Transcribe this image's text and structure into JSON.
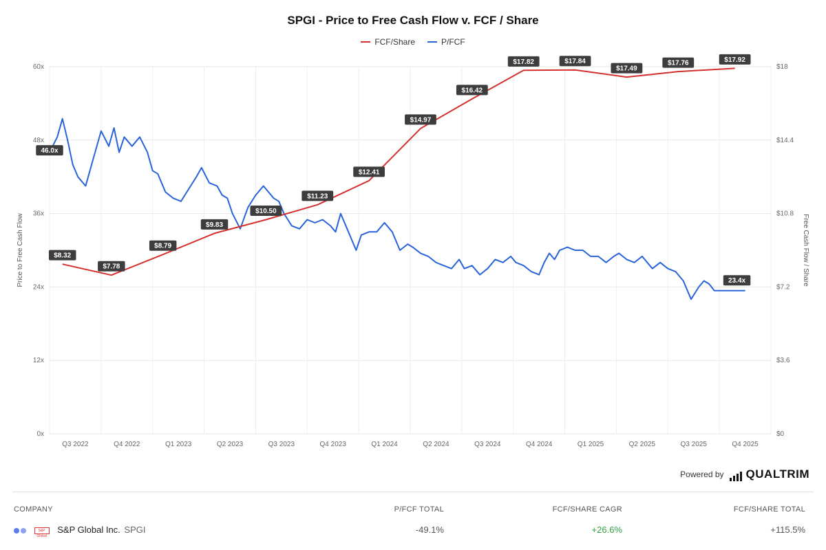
{
  "title": "SPGI - Price to Free Cash Flow v. FCF / Share",
  "legend": [
    {
      "name": "FCF/Share",
      "color": "#d32f2f"
    },
    {
      "name": "P/FCF",
      "color": "#2962d9"
    }
  ],
  "chart_data": {
    "type": "line",
    "title": "SPGI - Price to Free Cash Flow v. FCF / Share",
    "x_ticks": [
      "Q3 2022",
      "Q4 2022",
      "Q1 2023",
      "Q2 2023",
      "Q3 2023",
      "Q4 2023",
      "Q1 2024",
      "Q2 2024",
      "Q3 2024",
      "Q4 2024",
      "Q1 2025",
      "Q2 2025",
      "Q3 2025",
      "Q4 2025"
    ],
    "y_left": {
      "label": "Price to Free Cash Flow",
      "min": 0,
      "max": 60,
      "ticks": [
        "0x",
        "12x",
        "24x",
        "36x",
        "48x",
        "60x"
      ]
    },
    "y_right": {
      "label": "Free Cash Flow / Share",
      "min": 0,
      "max": 18,
      "ticks": [
        "$0",
        "$3.6",
        "$7.2",
        "$10.8",
        "$14.4",
        "$18"
      ]
    },
    "series": [
      {
        "name": "FCF/Share",
        "axis": "right",
        "color": "#d32f2f",
        "x": [
          0.25,
          1.2,
          2.2,
          3.2,
          4.2,
          5.2,
          6.2,
          7.2,
          8.2,
          9.2,
          10.2,
          11.2,
          12.2,
          13.3
        ],
        "values": [
          8.32,
          7.78,
          8.79,
          9.83,
          10.5,
          11.23,
          12.41,
          14.97,
          16.42,
          17.82,
          17.84,
          17.49,
          17.76,
          17.92
        ],
        "labels": [
          "$8.32",
          "$7.78",
          "$8.79",
          "$9.83",
          "$10.50",
          "$11.23",
          "$12.41",
          "$14.97",
          "$16.42",
          "$17.82",
          "$17.84",
          "$17.49",
          "$17.76",
          "$17.92"
        ]
      },
      {
        "name": "P/FCF",
        "axis": "left",
        "color": "#2962d9",
        "x": [
          0,
          0.15,
          0.25,
          0.35,
          0.45,
          0.55,
          0.7,
          0.85,
          1.0,
          1.15,
          1.25,
          1.35,
          1.45,
          1.6,
          1.75,
          1.9,
          2.0,
          2.1,
          2.25,
          2.4,
          2.55,
          2.7,
          2.85,
          2.95,
          3.1,
          3.25,
          3.35,
          3.45,
          3.55,
          3.7,
          3.85,
          4.0,
          4.15,
          4.25,
          4.35,
          4.45,
          4.55,
          4.7,
          4.85,
          5.0,
          5.15,
          5.3,
          5.45,
          5.55,
          5.65,
          5.8,
          5.95,
          6.05,
          6.2,
          6.35,
          6.5,
          6.65,
          6.8,
          6.95,
          7.05,
          7.2,
          7.35,
          7.5,
          7.65,
          7.8,
          7.95,
          8.05,
          8.2,
          8.35,
          8.5,
          8.65,
          8.8,
          8.95,
          9.05,
          9.2,
          9.35,
          9.5,
          9.6,
          9.7,
          9.8,
          9.9,
          10.05,
          10.2,
          10.35,
          10.5,
          10.65,
          10.8,
          10.95,
          11.05,
          11.2,
          11.35,
          11.5,
          11.6,
          11.7,
          11.85,
          12.0,
          12.15,
          12.3,
          12.45,
          12.6,
          12.7,
          12.8,
          12.9,
          13.0,
          13.1,
          13.2,
          13.3,
          13.4,
          13.5
        ],
        "values": [
          46.0,
          48.5,
          51.5,
          48,
          44,
          42,
          40.5,
          45,
          49.5,
          47,
          50,
          46,
          48.5,
          47,
          48.5,
          46,
          43,
          42.5,
          39.5,
          38.5,
          38,
          40,
          42,
          43.5,
          41,
          40.5,
          39,
          38.5,
          36,
          33.5,
          37,
          39,
          40.5,
          39.5,
          38.5,
          38,
          36,
          34,
          33.5,
          35,
          34.5,
          35,
          34,
          33,
          36,
          33,
          30,
          32.5,
          33,
          33,
          34.5,
          33,
          30,
          31,
          30.5,
          29.5,
          29,
          28,
          27.5,
          27,
          28.5,
          27,
          27.5,
          26,
          27,
          28.5,
          28,
          29,
          28,
          27.5,
          26.5,
          26,
          28,
          29.5,
          28.5,
          30,
          30.5,
          30,
          30,
          29,
          29,
          28,
          29,
          29.5,
          28.5,
          28,
          29,
          28,
          27,
          28,
          27,
          26.5,
          25,
          22,
          24,
          25,
          24.5,
          23.4,
          23.4,
          23.4,
          23.4,
          23.4,
          23.4,
          23.4
        ],
        "end_label": "23.4x",
        "start_label": "46.0x"
      }
    ]
  },
  "footer": {
    "powered_by": "Powered by",
    "brand": "QUALTRIM"
  },
  "table": {
    "headers": {
      "company": "COMPANY",
      "pfcf": "P/FCF TOTAL",
      "cagr": "FCF/SHARE CAGR",
      "total": "FCF/SHARE TOTAL"
    },
    "row": {
      "logo_text": "S&P Global",
      "company": "S&P Global Inc.",
      "ticker": "SPGI",
      "pfcf": "-49.1%",
      "cagr": "+26.6%",
      "total": "+115.5%",
      "dot_colors": [
        "#5b7fe6",
        "#8aa4ee"
      ],
      "cagr_color": "#2e9e3e",
      "neutral_color": "#555555"
    }
  }
}
